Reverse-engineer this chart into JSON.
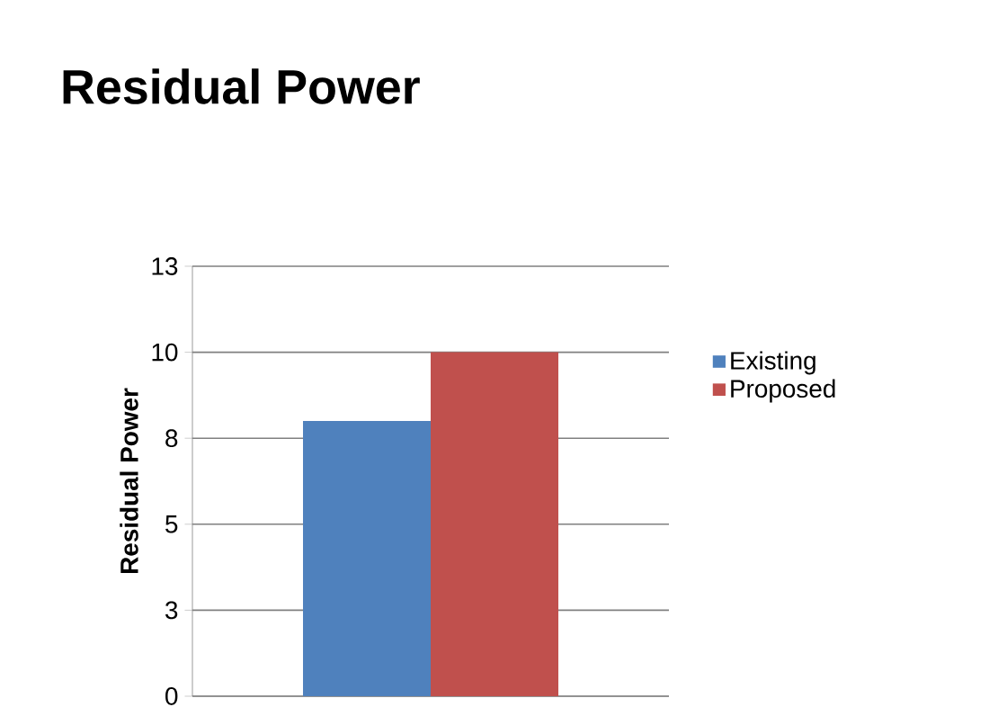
{
  "chart_data": {
    "type": "bar",
    "title": "Residual Power",
    "ylabel": "Residual Power",
    "categories": [
      null
    ],
    "series": [
      {
        "name": "Existing",
        "color": "#4f81bd",
        "values": [
          8.0
        ]
      },
      {
        "name": "Proposed",
        "color": "#c0504d",
        "values": [
          10.0
        ]
      }
    ],
    "ylim": [
      0,
      12.5
    ],
    "yticks": [
      0,
      {
        "value": 2.5,
        "label": "3"
      },
      5,
      {
        "value": 7.5,
        "label": "8"
      },
      10,
      {
        "value": 12.5,
        "label": "13"
      }
    ],
    "grid": "y",
    "legend": "right"
  }
}
